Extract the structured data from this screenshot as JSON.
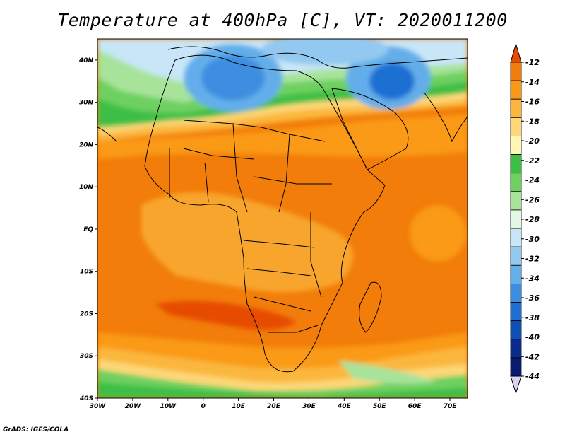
{
  "title": "Temperature at 400hPa [C], VT: 2020011200",
  "credit": "GrADS: IGES/COLA",
  "map": {
    "region": "Africa",
    "lat_range": [
      -40,
      45
    ],
    "lon_range": [
      -30,
      75
    ],
    "lat_ticks": [
      "40N",
      "30N",
      "20N",
      "10N",
      "EQ",
      "10S",
      "20S",
      "30S",
      "40S"
    ],
    "lon_ticks": [
      "30W",
      "20W",
      "10W",
      "0",
      "10E",
      "20E",
      "30E",
      "40E",
      "50E",
      "60E",
      "70E"
    ]
  },
  "colorbar": {
    "labels": [
      "-12",
      "-14",
      "-16",
      "-18",
      "-20",
      "-22",
      "-24",
      "-26",
      "-28",
      "-30",
      "-32",
      "-34",
      "-36",
      "-38",
      "-40",
      "-42",
      "-44"
    ],
    "colors": [
      "#e64b00",
      "#f27d0a",
      "#fa9a14",
      "#fbb73c",
      "#fdd778",
      "#fef6b4",
      "#3dbf46",
      "#6ed060",
      "#a7e39a",
      "#e4f7e4",
      "#c8e6f7",
      "#93c9f0",
      "#64aeea",
      "#3c8ee0",
      "#1f6fd2",
      "#0d4fb4",
      "#0a2a8c",
      "#0a1a70"
    ],
    "top_cap_color": "#e64b00",
    "bottom_cap_color": "#d8d4f0"
  }
}
